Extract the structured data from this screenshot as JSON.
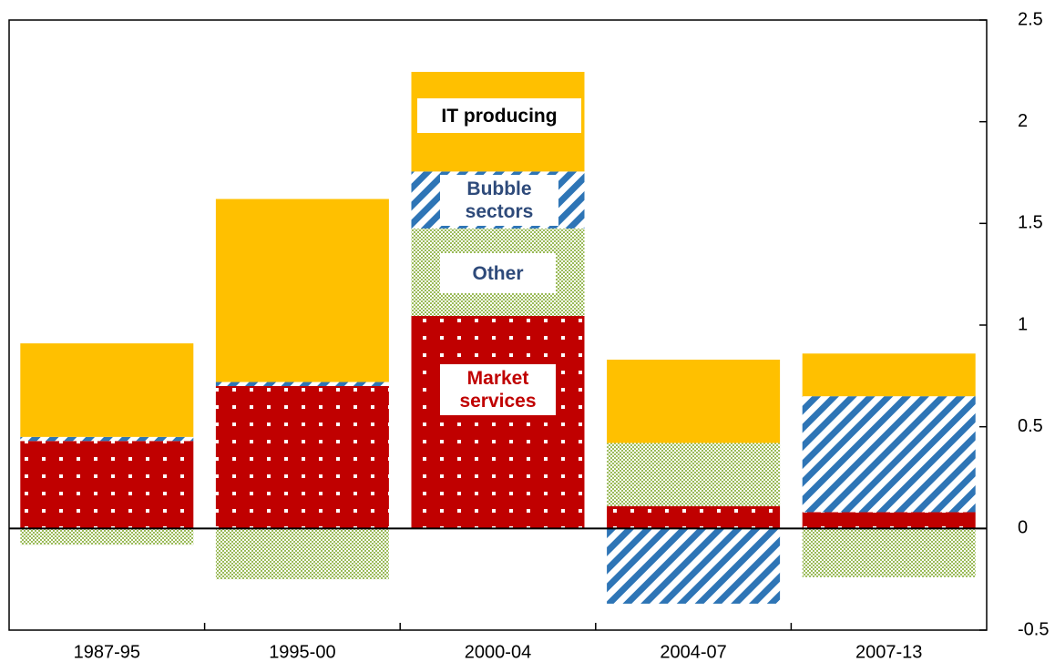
{
  "chart_data": {
    "type": "stacked_bar",
    "categories": [
      "1987-95",
      "1995-00",
      "2000-04",
      "2004-07",
      "2007-13"
    ],
    "series": [
      {
        "name": "Market services",
        "color": "#c00000",
        "pattern": "dots",
        "values": [
          0.43,
          0.7,
          1.045,
          0.11,
          0.08
        ]
      },
      {
        "name": "Other",
        "color": "#9bbb59",
        "pattern": "checker",
        "values": [
          -0.08,
          -0.25,
          0.43,
          0.31,
          -0.24
        ]
      },
      {
        "name": "Bubble sectors",
        "color": "#2e75b6",
        "pattern": "stripes",
        "values": [
          0.02,
          0.02,
          0.28,
          -0.37,
          0.57
        ]
      },
      {
        "name": "IT producing",
        "color": "#ffc000",
        "pattern": "solid",
        "values": [
          0.46,
          0.9,
          0.49,
          0.41,
          0.21
        ]
      }
    ],
    "ylim": [
      -0.5,
      2.5
    ],
    "yticks": [
      -0.5,
      0,
      0.5,
      1,
      1.5,
      2,
      2.5
    ],
    "y_axis_side": "right"
  }
}
